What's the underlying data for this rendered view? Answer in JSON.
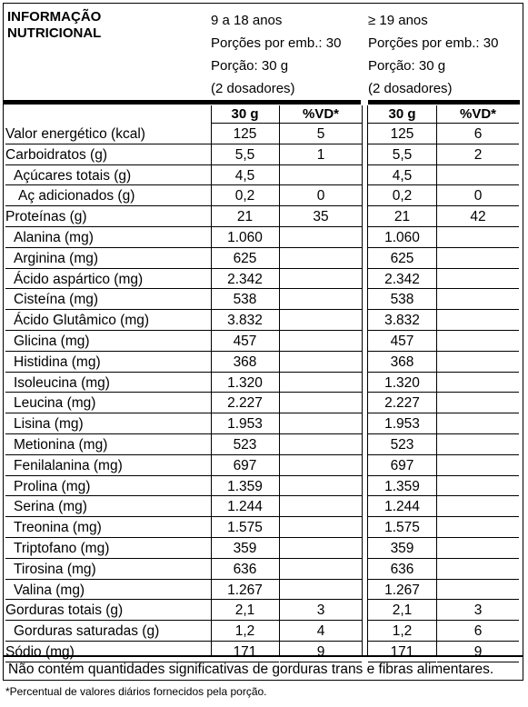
{
  "title": [
    "INFORMAÇÃO",
    "NUTRICIONAL"
  ],
  "groups": [
    {
      "lines": [
        "9 a 18 anos",
        "Porções por emb.: 30",
        "Porção: 30 g",
        "(2 dosadores)"
      ],
      "col_portion": "30 g",
      "col_vd": "%VD*"
    },
    {
      "lines": [
        "≥ 19 anos",
        "Porções por emb.: 30",
        "Porção: 30 g",
        "(2 dosadores)"
      ],
      "col_portion": "30 g",
      "col_vd": "%VD*"
    }
  ],
  "rows": [
    {
      "label": "Valor energético (kcal)",
      "indent": 0,
      "a": "125",
      "a_vd": "5",
      "b": "125",
      "b_vd": "6"
    },
    {
      "label": "Carboidratos (g)",
      "indent": 0,
      "a": "5,5",
      "a_vd": "1",
      "b": "5,5",
      "b_vd": "2"
    },
    {
      "label": "Açúcares totais (g)",
      "indent": 1,
      "a": "4,5",
      "a_vd": "",
      "b": "4,5",
      "b_vd": ""
    },
    {
      "label": "Aç adicionados (g)",
      "indent": 2,
      "a": "0,2",
      "a_vd": "0",
      "b": "0,2",
      "b_vd": "0"
    },
    {
      "label": "Proteínas (g)",
      "indent": 0,
      "a": "21",
      "a_vd": "35",
      "b": "21",
      "b_vd": "42"
    },
    {
      "label": "Alanina (mg)",
      "indent": 1,
      "a": "1.060",
      "a_vd": "",
      "b": "1.060",
      "b_vd": ""
    },
    {
      "label": "Arginina (mg)",
      "indent": 1,
      "a": "625",
      "a_vd": "",
      "b": "625",
      "b_vd": ""
    },
    {
      "label": "Ácido aspártico (mg)",
      "indent": 1,
      "a": "2.342",
      "a_vd": "",
      "b": "2.342",
      "b_vd": ""
    },
    {
      "label": "Cisteína (mg)",
      "indent": 1,
      "a": "538",
      "a_vd": "",
      "b": "538",
      "b_vd": ""
    },
    {
      "label": "Ácido Glutâmico (mg)",
      "indent": 1,
      "a": "3.832",
      "a_vd": "",
      "b": "3.832",
      "b_vd": ""
    },
    {
      "label": "Glicina (mg)",
      "indent": 1,
      "a": "457",
      "a_vd": "",
      "b": "457",
      "b_vd": ""
    },
    {
      "label": "Histidina (mg)",
      "indent": 1,
      "a": "368",
      "a_vd": "",
      "b": "368",
      "b_vd": ""
    },
    {
      "label": "Isoleucina (mg)",
      "indent": 1,
      "a": "1.320",
      "a_vd": "",
      "b": "1.320",
      "b_vd": ""
    },
    {
      "label": "Leucina (mg)",
      "indent": 1,
      "a": "2.227",
      "a_vd": "",
      "b": "2.227",
      "b_vd": ""
    },
    {
      "label": "Lisina (mg)",
      "indent": 1,
      "a": "1.953",
      "a_vd": "",
      "b": "1.953",
      "b_vd": ""
    },
    {
      "label": "Metionina (mg)",
      "indent": 1,
      "a": "523",
      "a_vd": "",
      "b": "523",
      "b_vd": ""
    },
    {
      "label": "Fenilalanina (mg)",
      "indent": 1,
      "a": "697",
      "a_vd": "",
      "b": "697",
      "b_vd": ""
    },
    {
      "label": "Prolina (mg)",
      "indent": 1,
      "a": "1.359",
      "a_vd": "",
      "b": "1.359",
      "b_vd": ""
    },
    {
      "label": "Serina (mg)",
      "indent": 1,
      "a": "1.244",
      "a_vd": "",
      "b": "1.244",
      "b_vd": ""
    },
    {
      "label": "Treonina (mg)",
      "indent": 1,
      "a": "1.575",
      "a_vd": "",
      "b": "1.575",
      "b_vd": ""
    },
    {
      "label": "Triptofano (mg)",
      "indent": 1,
      "a": "359",
      "a_vd": "",
      "b": "359",
      "b_vd": ""
    },
    {
      "label": "Tirosina (mg)",
      "indent": 1,
      "a": "636",
      "a_vd": "",
      "b": "636",
      "b_vd": ""
    },
    {
      "label": "Valina (mg)",
      "indent": 1,
      "a": "1.267",
      "a_vd": "",
      "b": "1.267",
      "b_vd": ""
    },
    {
      "label": "Gorduras totais (g)",
      "indent": 0,
      "a": "2,1",
      "a_vd": "3",
      "b": "2,1",
      "b_vd": "3"
    },
    {
      "label": "Gorduras saturadas (g)",
      "indent": 1,
      "a": "1,2",
      "a_vd": "4",
      "b": "1,2",
      "b_vd": "6"
    },
    {
      "label": "Sódio (mg)",
      "indent": 0,
      "a": "171",
      "a_vd": "9",
      "b": "171",
      "b_vd": "9"
    }
  ],
  "footer_note": "Não contém quantidades significativas de gorduras trans e fibras alimentares.",
  "vd_note": "*Percentual de valores diários fornecidos pela porção."
}
